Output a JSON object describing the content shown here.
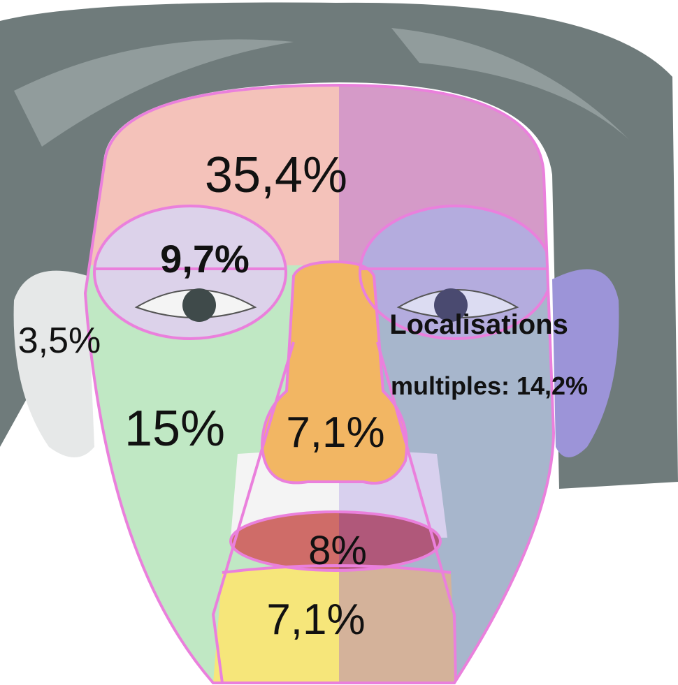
{
  "regions": [
    {
      "name": "forehead",
      "label": "35,4%"
    },
    {
      "name": "eyes",
      "label": "9,7%"
    },
    {
      "name": "ears",
      "label": "3,5%"
    },
    {
      "name": "cheeks",
      "label": "15%"
    },
    {
      "name": "nose",
      "label": "7,1%"
    },
    {
      "name": "lips",
      "label": "8%"
    },
    {
      "name": "chin",
      "label": "7,1%"
    }
  ],
  "multiple": {
    "line1": "Localisations",
    "line2": "multiples: 14,2%"
  }
}
